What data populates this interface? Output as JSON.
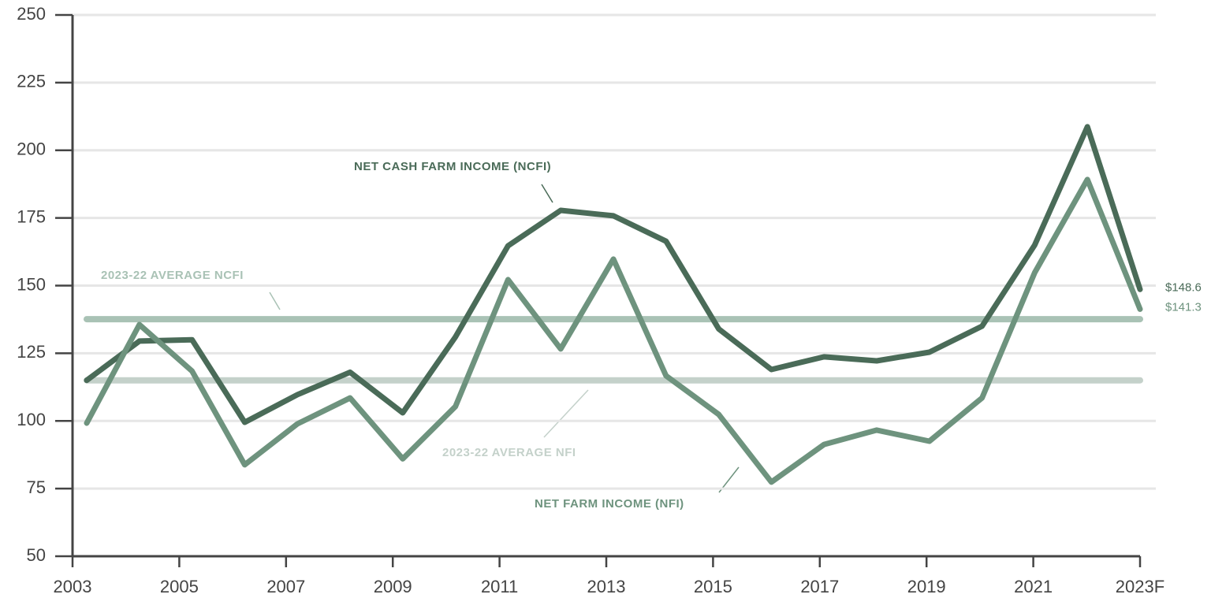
{
  "chart_data": {
    "type": "line",
    "categories": [
      "2003",
      null,
      "2005",
      null,
      "2007",
      null,
      "2009",
      null,
      "2011",
      null,
      "2013",
      null,
      "2015",
      null,
      "2017",
      null,
      "2019",
      null,
      "2021",
      null,
      "2023F"
    ],
    "series": [
      {
        "name": "NET CASH FARM INCOME (NCFI)",
        "color": "#4a6b58",
        "values": [
          115,
          129.5,
          130,
          99.5,
          109.7,
          118,
          103,
          131,
          164.7,
          177.8,
          175.8,
          166.4,
          134,
          119,
          123.7,
          122.2,
          125.4,
          135,
          165,
          208.7,
          148.6
        ],
        "value_labels": [
          null,
          null,
          null,
          null,
          null,
          null,
          null,
          null,
          null,
          null,
          null,
          null,
          null,
          null,
          null,
          null,
          null,
          null,
          null,
          null,
          "$148.6"
        ]
      },
      {
        "name": "NET FARM INCOME (NFI)",
        "color": "#6e937e",
        "values": [
          99.2,
          135.6,
          118.4,
          83.8,
          98.9,
          108.5,
          86,
          105.3,
          152.2,
          126.6,
          159.8,
          116.7,
          102.4,
          77.4,
          91.3,
          96.6,
          92.5,
          108.5,
          154.8,
          189.2,
          141.3
        ],
        "value_labels": [
          null,
          null,
          null,
          null,
          null,
          null,
          null,
          null,
          null,
          null,
          null,
          null,
          null,
          null,
          null,
          null,
          null,
          null,
          null,
          null,
          "$141.3"
        ]
      }
    ],
    "reference_lines": [
      {
        "label": "2023-22 AVERAGE NCFI",
        "value": 137.6,
        "color": "#a9c2b5"
      },
      {
        "label": "2023-22 AVERAGE NFI",
        "value": 115,
        "color": "#c4d1ca"
      }
    ],
    "ylim": [
      50,
      250
    ],
    "yticks": [
      50,
      75,
      100,
      125,
      150,
      175,
      200,
      225,
      250
    ],
    "grid": true
  }
}
